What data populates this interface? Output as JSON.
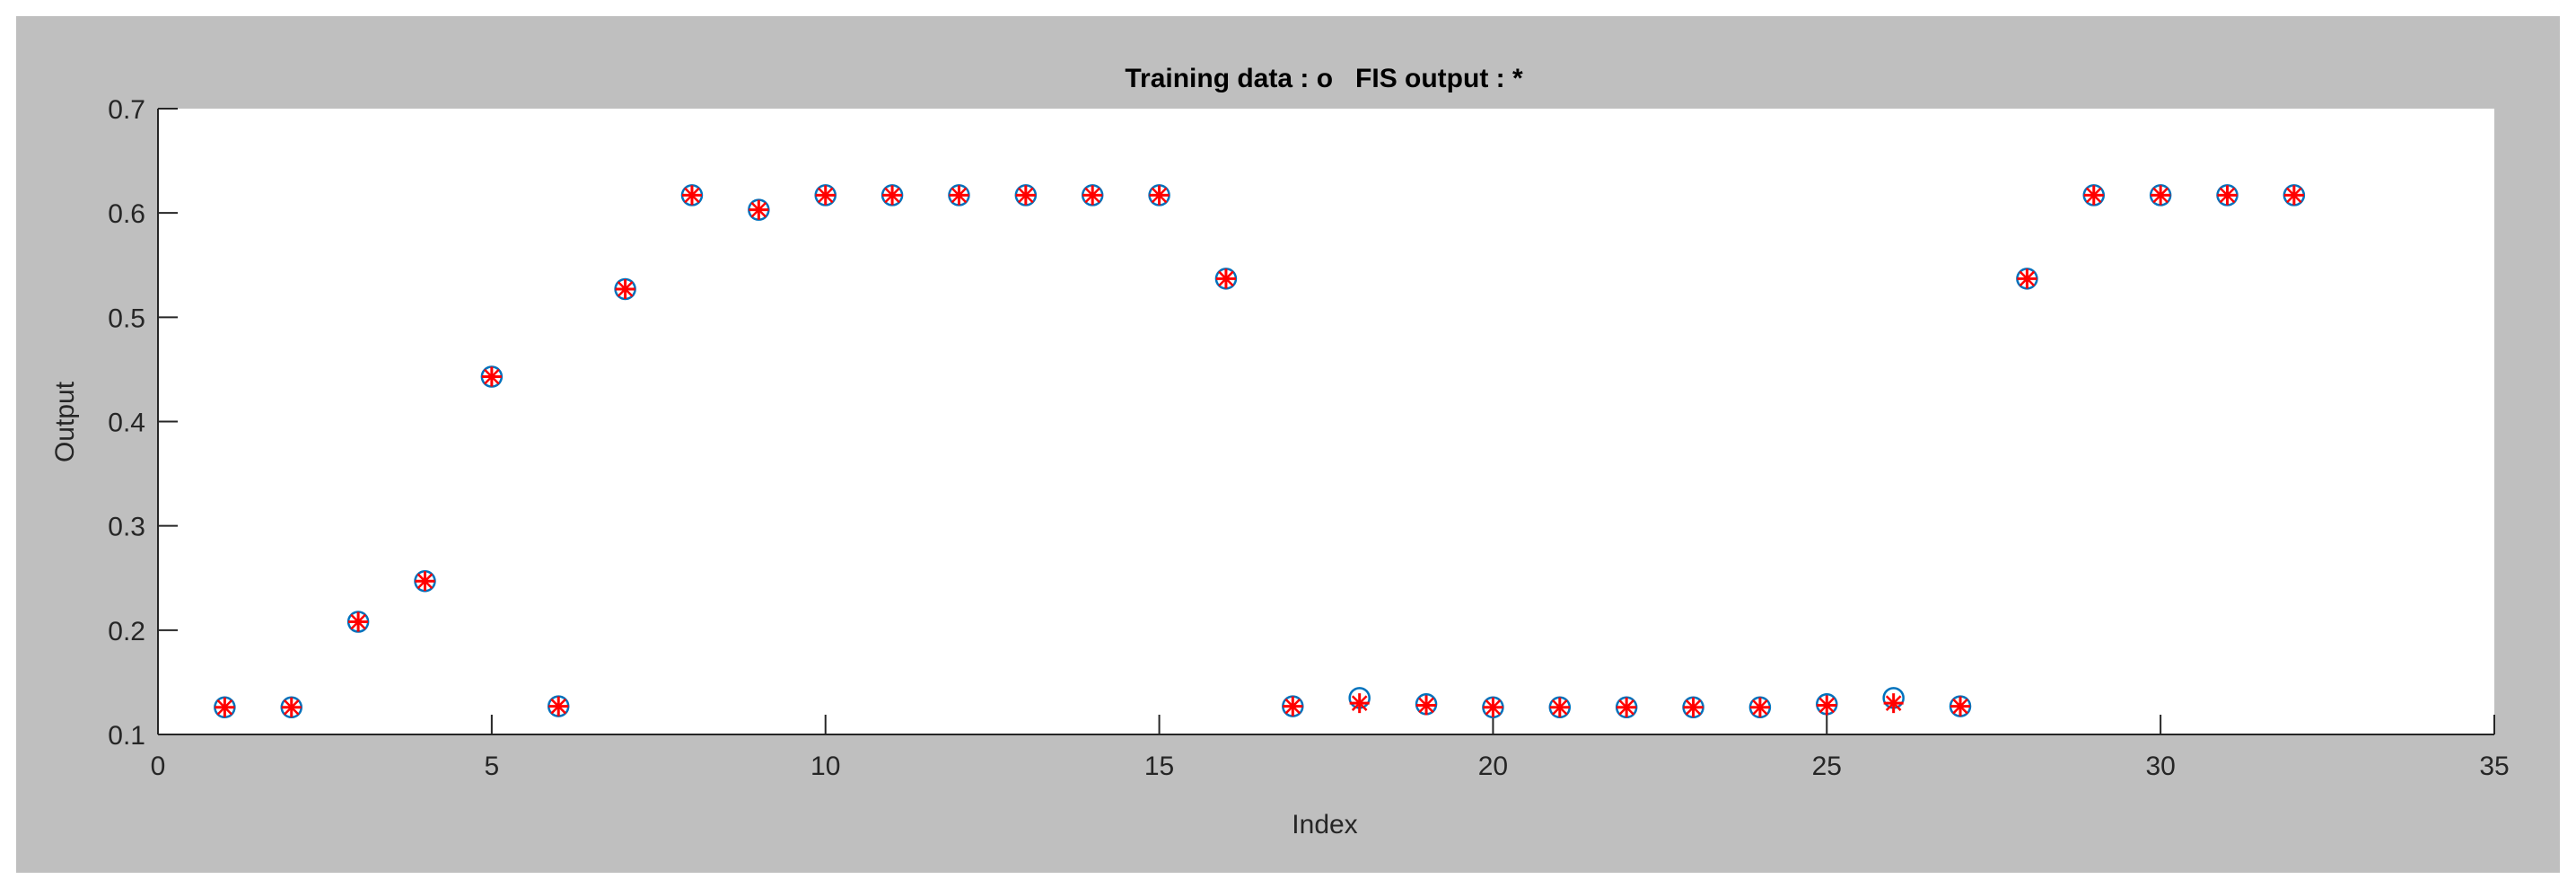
{
  "chart_data": {
    "type": "scatter",
    "title": "Training data : o   FIS output : *",
    "xlabel": "Index",
    "ylabel": "Output",
    "xlim": [
      0,
      35
    ],
    "ylim": [
      0.1,
      0.7
    ],
    "xticks": [
      "0",
      "5",
      "10",
      "15",
      "20",
      "25",
      "30",
      "35"
    ],
    "yticks": [
      "0.1",
      "0.2",
      "0.3",
      "0.4",
      "0.5",
      "0.6",
      "0.7"
    ],
    "grid": false,
    "series": [
      {
        "marker": "circle",
        "color": "#0072BD",
        "x": [
          1,
          2,
          3,
          4,
          5,
          6,
          7,
          8,
          9,
          10,
          11,
          12,
          13,
          14,
          15,
          16,
          17,
          18,
          19,
          20,
          21,
          22,
          23,
          24,
          25,
          26,
          27,
          28,
          29,
          30,
          31,
          32
        ],
        "y": [
          0.126,
          0.126,
          0.208,
          0.247,
          0.443,
          0.127,
          0.527,
          0.617,
          0.603,
          0.617,
          0.617,
          0.617,
          0.617,
          0.617,
          0.617,
          0.537,
          0.127,
          0.135,
          0.129,
          0.126,
          0.126,
          0.126,
          0.126,
          0.126,
          0.129,
          0.135,
          0.127,
          0.537,
          0.617,
          0.617,
          0.617,
          0.617
        ]
      },
      {
        "marker": "star",
        "color": "#FF0000",
        "x": [
          1,
          2,
          3,
          4,
          5,
          6,
          7,
          8,
          9,
          10,
          11,
          12,
          13,
          14,
          15,
          16,
          17,
          18,
          19,
          20,
          21,
          22,
          23,
          24,
          25,
          26,
          27,
          28,
          29,
          30,
          31,
          32
        ],
        "y": [
          0.126,
          0.126,
          0.208,
          0.247,
          0.443,
          0.127,
          0.527,
          0.617,
          0.603,
          0.617,
          0.617,
          0.617,
          0.617,
          0.617,
          0.617,
          0.537,
          0.127,
          0.13,
          0.128,
          0.126,
          0.126,
          0.126,
          0.126,
          0.126,
          0.128,
          0.13,
          0.127,
          0.537,
          0.617,
          0.617,
          0.617,
          0.617
        ]
      }
    ]
  },
  "colors": {
    "figure_background": "#BFBFBF",
    "axes_background": "#FFFFFF"
  }
}
